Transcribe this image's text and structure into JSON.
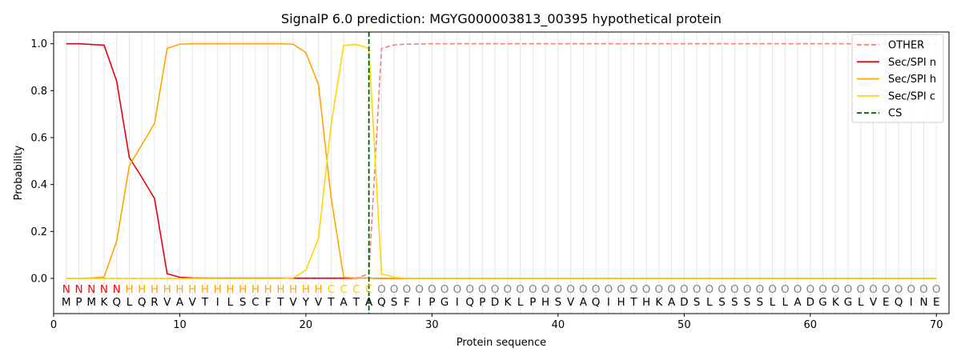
{
  "chart_data": {
    "type": "line",
    "title": "SignalP 6.0 prediction: MGYG000003813_00395 hypothetical protein",
    "xlabel": "Protein sequence",
    "ylabel": "Probability",
    "xlim": [
      0,
      71
    ],
    "ylim": [
      -0.15,
      1.05
    ],
    "xticks": [
      0,
      10,
      20,
      30,
      40,
      50,
      60,
      70
    ],
    "yticks": [
      0.0,
      0.2,
      0.4,
      0.6,
      0.8,
      1.0
    ],
    "grid": "vertical lines at each residue",
    "legend_position": "top-right",
    "sequence": [
      "M",
      "P",
      "M",
      "K",
      "Q",
      "L",
      "Q",
      "R",
      "V",
      "A",
      "V",
      "T",
      "I",
      "L",
      "S",
      "C",
      "F",
      "T",
      "V",
      "Y",
      "V",
      "T",
      "A",
      "T",
      "A",
      "Q",
      "S",
      "F",
      "I",
      "P",
      "G",
      "I",
      "Q",
      "P",
      "D",
      "K",
      "L",
      "P",
      "H",
      "S",
      "V",
      "A",
      "Q",
      "I",
      "H",
      "T",
      "H",
      "K",
      "A",
      "D",
      "S",
      "L",
      "S",
      "S",
      "S",
      "S",
      "L",
      "L",
      "A",
      "D",
      "G",
      "K",
      "G",
      "L",
      "V",
      "E",
      "Q",
      "I",
      "N",
      "E"
    ],
    "region_labels": [
      "N",
      "N",
      "N",
      "N",
      "N",
      "H",
      "H",
      "H",
      "H",
      "H",
      "H",
      "H",
      "H",
      "H",
      "H",
      "H",
      "H",
      "H",
      "H",
      "H",
      "H",
      "C",
      "C",
      "C",
      "C",
      "O",
      "O",
      "O",
      "O",
      "O",
      "O",
      "O",
      "O",
      "O",
      "O",
      "O",
      "O",
      "O",
      "O",
      "O",
      "O",
      "O",
      "O",
      "O",
      "O",
      "O",
      "O",
      "O",
      "O",
      "O",
      "O",
      "O",
      "O",
      "O",
      "O",
      "O",
      "O",
      "O",
      "O",
      "O",
      "O",
      "O",
      "O",
      "O",
      "O",
      "O",
      "O",
      "O",
      "O",
      "O"
    ],
    "region_colors": {
      "N": "#ff0000",
      "H": "#ffa500",
      "C": "#ffc800",
      "O": "#808080"
    },
    "cleavage_site": 25,
    "series": [
      {
        "name": "OTHER",
        "color": "#f08080",
        "dash": true,
        "values": [
          0,
          0,
          0,
          0,
          0,
          0,
          0,
          0,
          0,
          0,
          0,
          0,
          0,
          0,
          0,
          0,
          0,
          0,
          0,
          0,
          0,
          0,
          0,
          0,
          0.02,
          0.98,
          0.995,
          0.998,
          0.999,
          1,
          1,
          1,
          1,
          1,
          1,
          1,
          1,
          1,
          1,
          1,
          1,
          1,
          1,
          1,
          1,
          1,
          1,
          1,
          1,
          1,
          1,
          1,
          1,
          1,
          1,
          1,
          1,
          1,
          1,
          1,
          1,
          1,
          1,
          1,
          1,
          1,
          1,
          1,
          1,
          1
        ]
      },
      {
        "name": "Sec/SPI n",
        "color": "#e8000b",
        "dash": false,
        "values": [
          1.0,
          1.0,
          0.997,
          0.994,
          0.84,
          0.515,
          0.43,
          0.34,
          0.02,
          0.005,
          0.002,
          0.001,
          0.001,
          0.001,
          0.001,
          0.001,
          0.001,
          0.001,
          0.001,
          0.001,
          0.001,
          0.001,
          0.001,
          0.001,
          0.001,
          0,
          0,
          0,
          0,
          0,
          0,
          0,
          0,
          0,
          0,
          0,
          0,
          0,
          0,
          0,
          0,
          0,
          0,
          0,
          0,
          0,
          0,
          0,
          0,
          0,
          0,
          0,
          0,
          0,
          0,
          0,
          0,
          0,
          0,
          0,
          0,
          0,
          0,
          0,
          0,
          0,
          0,
          0,
          0,
          0
        ]
      },
      {
        "name": "Sec/SPI h",
        "color": "#ffa500",
        "dash": false,
        "values": [
          0,
          0,
          0.002,
          0.006,
          0.16,
          0.48,
          0.57,
          0.66,
          0.98,
          0.998,
          1.0,
          1.0,
          1.0,
          1.0,
          1.0,
          1.0,
          1.0,
          1.0,
          0.998,
          0.962,
          0.826,
          0.345,
          0.005,
          0.001,
          0.001,
          0,
          0,
          0,
          0,
          0,
          0,
          0,
          0,
          0,
          0,
          0,
          0,
          0,
          0,
          0,
          0,
          0,
          0,
          0,
          0,
          0,
          0,
          0,
          0,
          0,
          0,
          0,
          0,
          0,
          0,
          0,
          0,
          0,
          0,
          0,
          0,
          0,
          0,
          0,
          0,
          0,
          0,
          0,
          0,
          0
        ]
      },
      {
        "name": "Sec/SPI c",
        "color": "#ffd700",
        "dash": false,
        "values": [
          0,
          0,
          0,
          0,
          0,
          0,
          0,
          0,
          0,
          0,
          0,
          0,
          0,
          0,
          0,
          0,
          0,
          0,
          0.002,
          0.035,
          0.17,
          0.655,
          0.993,
          0.997,
          0.98,
          0.02,
          0.005,
          0,
          0,
          0,
          0,
          0,
          0,
          0,
          0,
          0,
          0,
          0,
          0,
          0,
          0,
          0,
          0,
          0,
          0,
          0,
          0,
          0,
          0,
          0,
          0,
          0,
          0,
          0,
          0,
          0,
          0,
          0,
          0,
          0,
          0,
          0,
          0,
          0,
          0,
          0,
          0,
          0,
          0,
          0
        ]
      }
    ],
    "legend": [
      "OTHER",
      "Sec/SPI n",
      "Sec/SPI h",
      "Sec/SPI c",
      "CS"
    ],
    "cs_color": "#006400"
  }
}
